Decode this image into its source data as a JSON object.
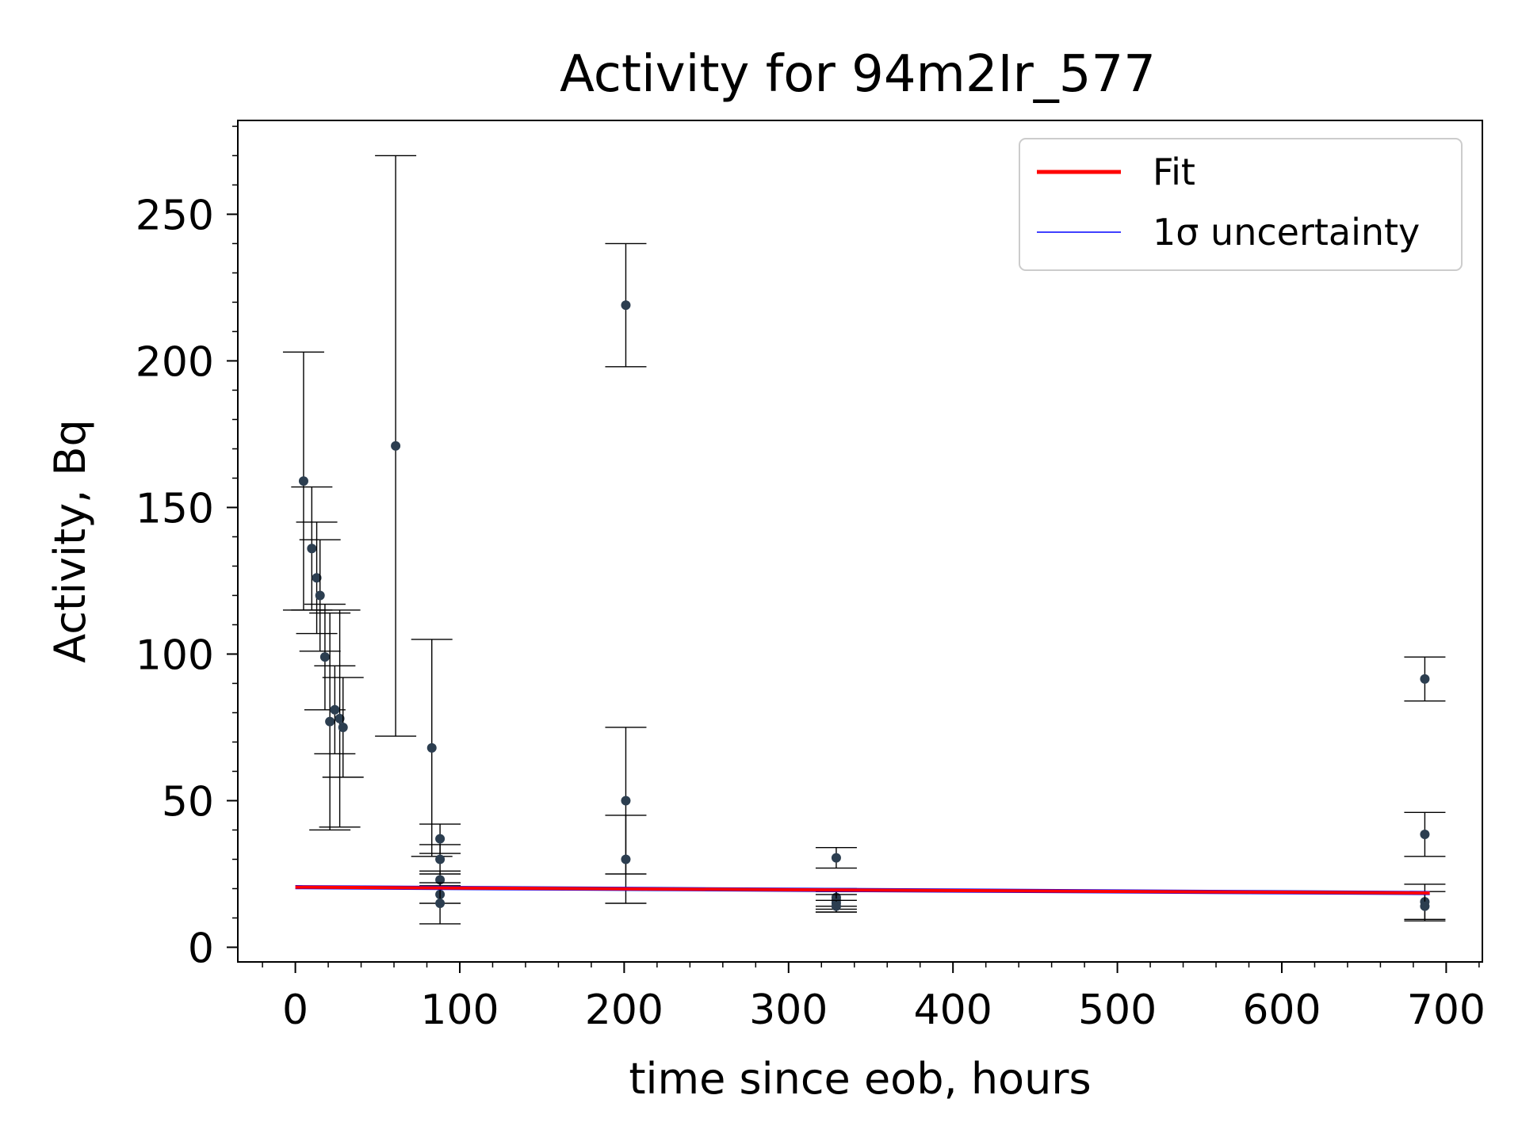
{
  "chart_data": {
    "type": "scatter",
    "title": "Activity for 94m2Ir_577",
    "xlabel": "time since eob, hours",
    "ylabel": "Activity, Bq",
    "xlim": [
      -35,
      722
    ],
    "ylim": [
      -5,
      282
    ],
    "xticks": [
      0,
      100,
      200,
      300,
      400,
      500,
      600,
      700
    ],
    "yticks": [
      0,
      50,
      100,
      150,
      200,
      250
    ],
    "xtick_labels": [
      "0",
      "100",
      "200",
      "300",
      "400",
      "500",
      "600",
      "700"
    ],
    "ytick_labels": [
      "0",
      "50",
      "100",
      "150",
      "200",
      "250"
    ],
    "grid": false,
    "legend_position": "top-right",
    "legend": [
      {
        "label": "Fit",
        "color": "#ff0000"
      },
      {
        "label": "1σ uncertainty",
        "color": "#0000ff"
      }
    ],
    "colors": {
      "points": "#2c3e50",
      "errorbars": "#000000",
      "fit": "#ff0000",
      "uncertainty": "#0000ff"
    },
    "points": [
      {
        "x": 5,
        "y": 159,
        "yerr": 44
      },
      {
        "x": 10,
        "y": 136,
        "yerr": 21
      },
      {
        "x": 13,
        "y": 126,
        "yerr": 19
      },
      {
        "x": 15,
        "y": 120,
        "yerr": 19
      },
      {
        "x": 18,
        "y": 99,
        "yerr": 18
      },
      {
        "x": 21,
        "y": 77,
        "yerr": 37
      },
      {
        "x": 24,
        "y": 81,
        "yerr": 15
      },
      {
        "x": 27,
        "y": 78,
        "yerr": 37
      },
      {
        "x": 29,
        "y": 75,
        "yerr": 17
      },
      {
        "x": 61,
        "y": 171,
        "yerr": 99
      },
      {
        "x": 83,
        "y": 68,
        "yerr": 37
      },
      {
        "x": 88,
        "y": 37,
        "yerr": 5
      },
      {
        "x": 88,
        "y": 30,
        "yerr": 5
      },
      {
        "x": 88,
        "y": 23,
        "yerr": 3
      },
      {
        "x": 88,
        "y": 18,
        "yerr": 3
      },
      {
        "x": 88,
        "y": 15,
        "yerr": 7
      },
      {
        "x": 201,
        "y": 219,
        "yerr": 21
      },
      {
        "x": 201,
        "y": 50,
        "yerr": 25
      },
      {
        "x": 201,
        "y": 30,
        "yerr": 15
      },
      {
        "x": 329,
        "y": 30.5,
        "yerr": 3.5
      },
      {
        "x": 329,
        "y": 17,
        "yerr": 3
      },
      {
        "x": 329,
        "y": 16,
        "yerr": 3
      },
      {
        "x": 329,
        "y": 15,
        "yerr": 3
      },
      {
        "x": 329,
        "y": 14,
        "yerr": 2
      },
      {
        "x": 687,
        "y": 91.5,
        "yerr": 7.5
      },
      {
        "x": 687,
        "y": 38.5,
        "yerr": 7.5
      },
      {
        "x": 687,
        "y": 15.5,
        "yerr": 6
      },
      {
        "x": 687,
        "y": 14,
        "yerr": 5
      }
    ],
    "fit": {
      "x": [
        0,
        690
      ],
      "y": [
        20.5,
        18.5
      ]
    },
    "uncertainty_band": {
      "x": [
        0,
        690
      ],
      "upper": [
        21.0,
        19.0
      ],
      "lower": [
        20.0,
        18.0
      ]
    }
  }
}
